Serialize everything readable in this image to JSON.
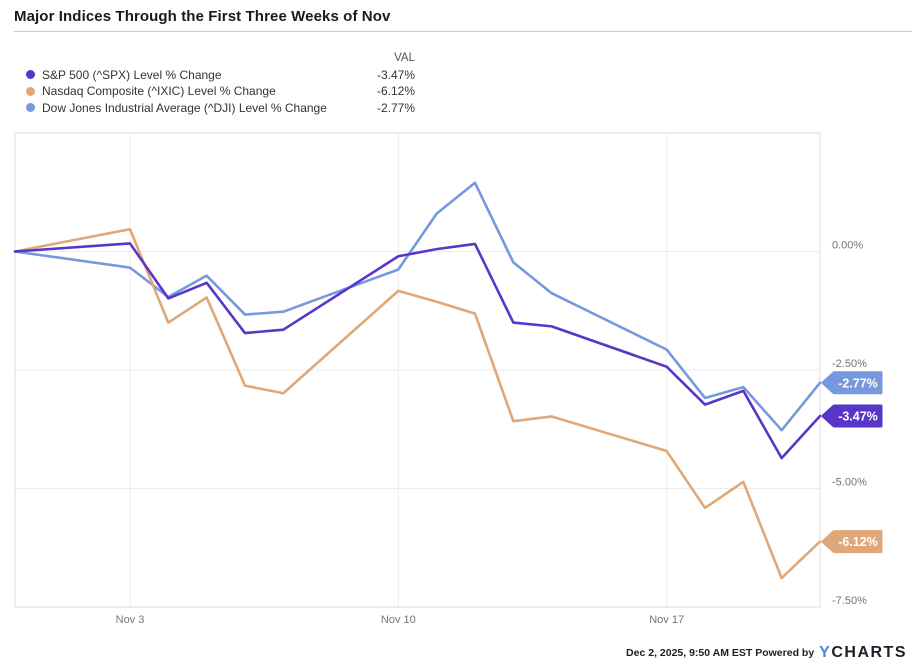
{
  "title": "Major Indices Through the First Three Weeks of Nov",
  "legend": {
    "val_header": "VAL",
    "items": [
      {
        "label": "S&P 500 (^SPX) Level % Change",
        "value": "-3.47%",
        "color": "#5a36c8"
      },
      {
        "label": "Nasdaq Composite (^IXIC) Level % Change",
        "value": "-6.12%",
        "color": "#e0a878"
      },
      {
        "label": "Dow Jones Industrial Average (^DJI) Level % Change",
        "value": "-2.77%",
        "color": "#7698dd"
      }
    ]
  },
  "chart_data": {
    "type": "line",
    "x": [
      "Oct 31",
      "Nov 3",
      "Nov 4",
      "Nov 5",
      "Nov 6",
      "Nov 7",
      "Nov 10",
      "Nov 11",
      "Nov 12",
      "Nov 13",
      "Nov 14",
      "Nov 17",
      "Nov 18",
      "Nov 19",
      "Nov 20",
      "Nov 21"
    ],
    "x_day_offset": [
      0,
      3,
      4,
      5,
      6,
      7,
      10,
      11,
      12,
      13,
      14,
      17,
      18,
      19,
      20,
      21
    ],
    "series": [
      {
        "id": "spx",
        "name": "S&P 500 (^SPX) Level % Change",
        "color": "#5a36c8",
        "end_label": "-3.47%",
        "values": [
          0.0,
          0.17,
          -0.99,
          -0.66,
          -1.72,
          -1.65,
          -0.1,
          0.05,
          0.16,
          -1.5,
          -1.58,
          -2.43,
          -3.23,
          -2.94,
          -4.36,
          -3.47
        ]
      },
      {
        "id": "ixic",
        "name": "Nasdaq Composite (^IXIC) Level % Change",
        "color": "#e0a878",
        "end_label": "-6.12%",
        "values": [
          0.0,
          0.47,
          -1.5,
          -0.97,
          -2.83,
          -2.99,
          -0.83,
          -1.06,
          -1.31,
          -3.58,
          -3.48,
          -4.21,
          -5.41,
          -4.86,
          -6.89,
          -6.12
        ]
      },
      {
        "id": "dji",
        "name": "Dow Jones Industrial Average (^DJI) Level % Change",
        "color": "#7698dd",
        "end_label": "-2.77%",
        "values": [
          0.0,
          -0.34,
          -0.96,
          -0.51,
          -1.33,
          -1.27,
          -0.38,
          0.8,
          1.45,
          -0.23,
          -0.88,
          -2.07,
          -3.09,
          -2.86,
          -3.77,
          -2.77
        ]
      }
    ],
    "ylim": [
      -7.5,
      2.5
    ],
    "x_range_days": [
      0,
      21
    ],
    "y_ticks": [
      {
        "v": 0.0,
        "label": "0.00%"
      },
      {
        "v": -2.5,
        "label": "-2.50%"
      },
      {
        "v": -5.0,
        "label": "-5.00%"
      },
      {
        "v": -7.5,
        "label": "-7.50%"
      }
    ],
    "x_ticks": [
      {
        "day": 3,
        "label": "Nov 3"
      },
      {
        "day": 10,
        "label": "Nov 10"
      },
      {
        "day": 17,
        "label": "Nov 17"
      }
    ],
    "grid": true,
    "legend_position": "top-left"
  },
  "footer": {
    "timestamp_powered": "Dec 2, 2025, 9:50 AM EST Powered by",
    "logo_y": "Y",
    "logo_charts": "CHARTS"
  }
}
